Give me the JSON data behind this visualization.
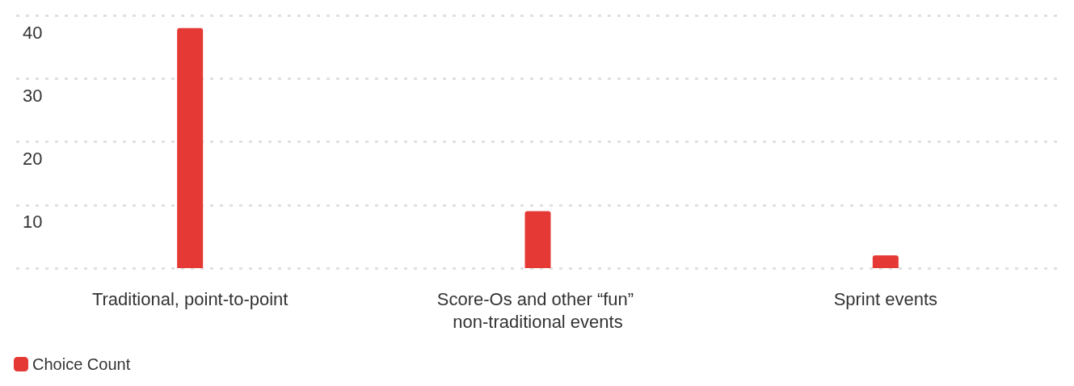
{
  "chart_data": {
    "type": "bar",
    "categories": [
      "Traditional, point-to-point",
      "Score-Os and other “fun” non-traditional events",
      "Sprint events"
    ],
    "series": [
      {
        "name": "Choice Count",
        "color": "#e53935",
        "values": [
          38,
          9,
          2
        ]
      }
    ],
    "ylim": [
      0,
      40
    ],
    "yticks": [
      {
        "value": 0,
        "label": null
      },
      10,
      20,
      30,
      40
    ],
    "grid": "y",
    "legend": "bottom left"
  }
}
